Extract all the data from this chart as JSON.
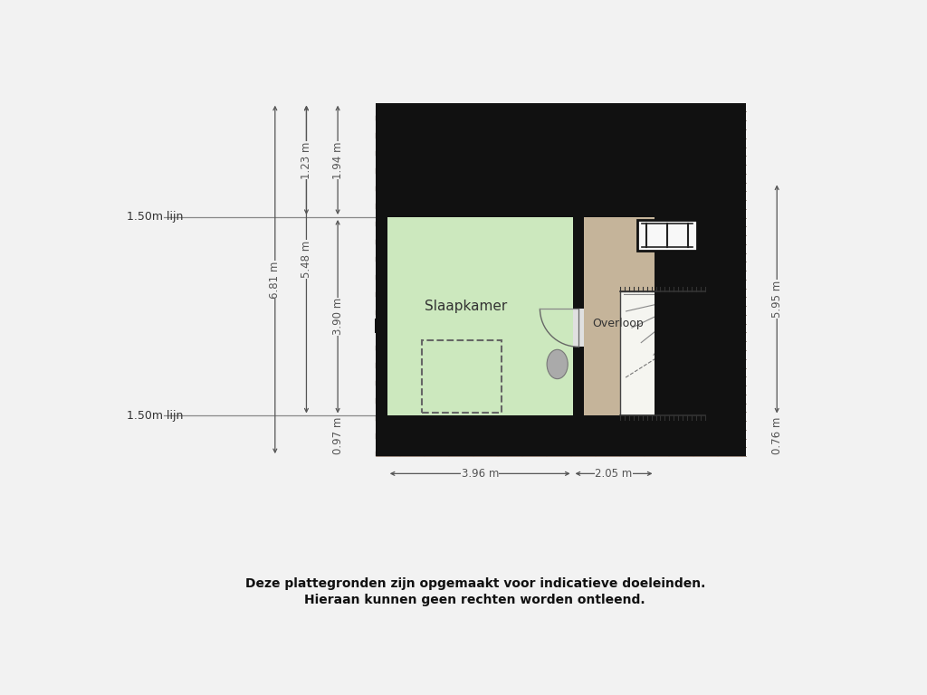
{
  "bg_color": "#f2f2f2",
  "roof_base_color": "#8B4513",
  "roof_dark_color": "#5a2c0e",
  "roof_tile_line_color": "#3d1a06",
  "wall_color": "#111111",
  "slaapkamer_color": "#cce8be",
  "overloop_color": "#c5b49a",
  "stair_color": "#f5f5f0",
  "dim_color": "#555555",
  "lijn_color": "#888888",
  "text_color": "#333333",
  "slaapkamer_label": "Slaapkamer",
  "overloop_label": "Overloop",
  "lijn_text": "1.50m lijn",
  "dim_681": "6.81 m",
  "dim_548": "5.48 m",
  "dim_390": "3.90 m",
  "dim_123": "1.23 m",
  "dim_194": "1.94 m",
  "dim_097": "0.97 m",
  "dim_595": "5.95 m",
  "dim_076": "0.76 m",
  "dim_396": "3.96 m",
  "dim_205": "2.05 m",
  "footer_line1": "Deze plattegronden zijn opgemaakt voor indicatieve doeleinden.",
  "footer_line2": "Hieraan kunnen geen rechten worden ontleend."
}
